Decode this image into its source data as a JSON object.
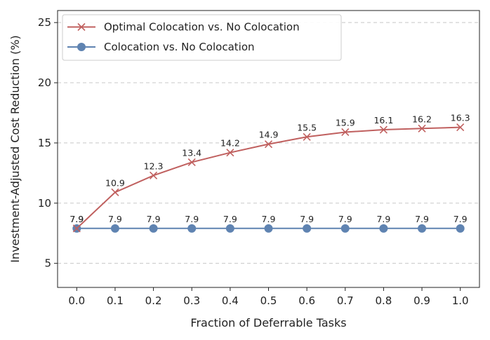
{
  "chart_data": {
    "type": "line",
    "xlabel": "Fraction of Deferrable Tasks",
    "ylabel": "Investment-Adjusted Cost Reduction (%)",
    "x": [
      0.0,
      0.1,
      0.2,
      0.3,
      0.4,
      0.5,
      0.6,
      0.7,
      0.8,
      0.9,
      1.0
    ],
    "x_tick_labels": [
      "0.0",
      "0.1",
      "0.2",
      "0.3",
      "0.4",
      "0.5",
      "0.6",
      "0.7",
      "0.8",
      "0.9",
      "1.0"
    ],
    "xlim": [
      -0.05,
      1.05
    ],
    "ylim": [
      3,
      26
    ],
    "y_ticks": [
      5,
      10,
      15,
      20,
      25
    ],
    "y_tick_labels": [
      "5",
      "10",
      "15",
      "20",
      "25"
    ],
    "grid": "horizontal dashed",
    "legend_position": "upper-left",
    "series": [
      {
        "name": "Optimal Colocation vs. No Colocation",
        "color": "#c0605f",
        "marker": "x",
        "values": [
          7.9,
          10.9,
          12.3,
          13.4,
          14.2,
          14.9,
          15.5,
          15.9,
          16.1,
          16.2,
          16.3
        ],
        "labels": [
          "7.9",
          "10.9",
          "12.3",
          "13.4",
          "14.2",
          "14.9",
          "15.5",
          "15.9",
          "16.1",
          "16.2",
          "16.3"
        ]
      },
      {
        "name": "Colocation vs. No Colocation",
        "color": "#5f83b1",
        "marker": "circle",
        "values": [
          7.9,
          7.9,
          7.9,
          7.9,
          7.9,
          7.9,
          7.9,
          7.9,
          7.9,
          7.9,
          7.9
        ],
        "labels": [
          "7.9",
          "7.9",
          "7.9",
          "7.9",
          "7.9",
          "7.9",
          "7.9",
          "7.9",
          "7.9",
          "7.9",
          "7.9"
        ]
      }
    ]
  }
}
